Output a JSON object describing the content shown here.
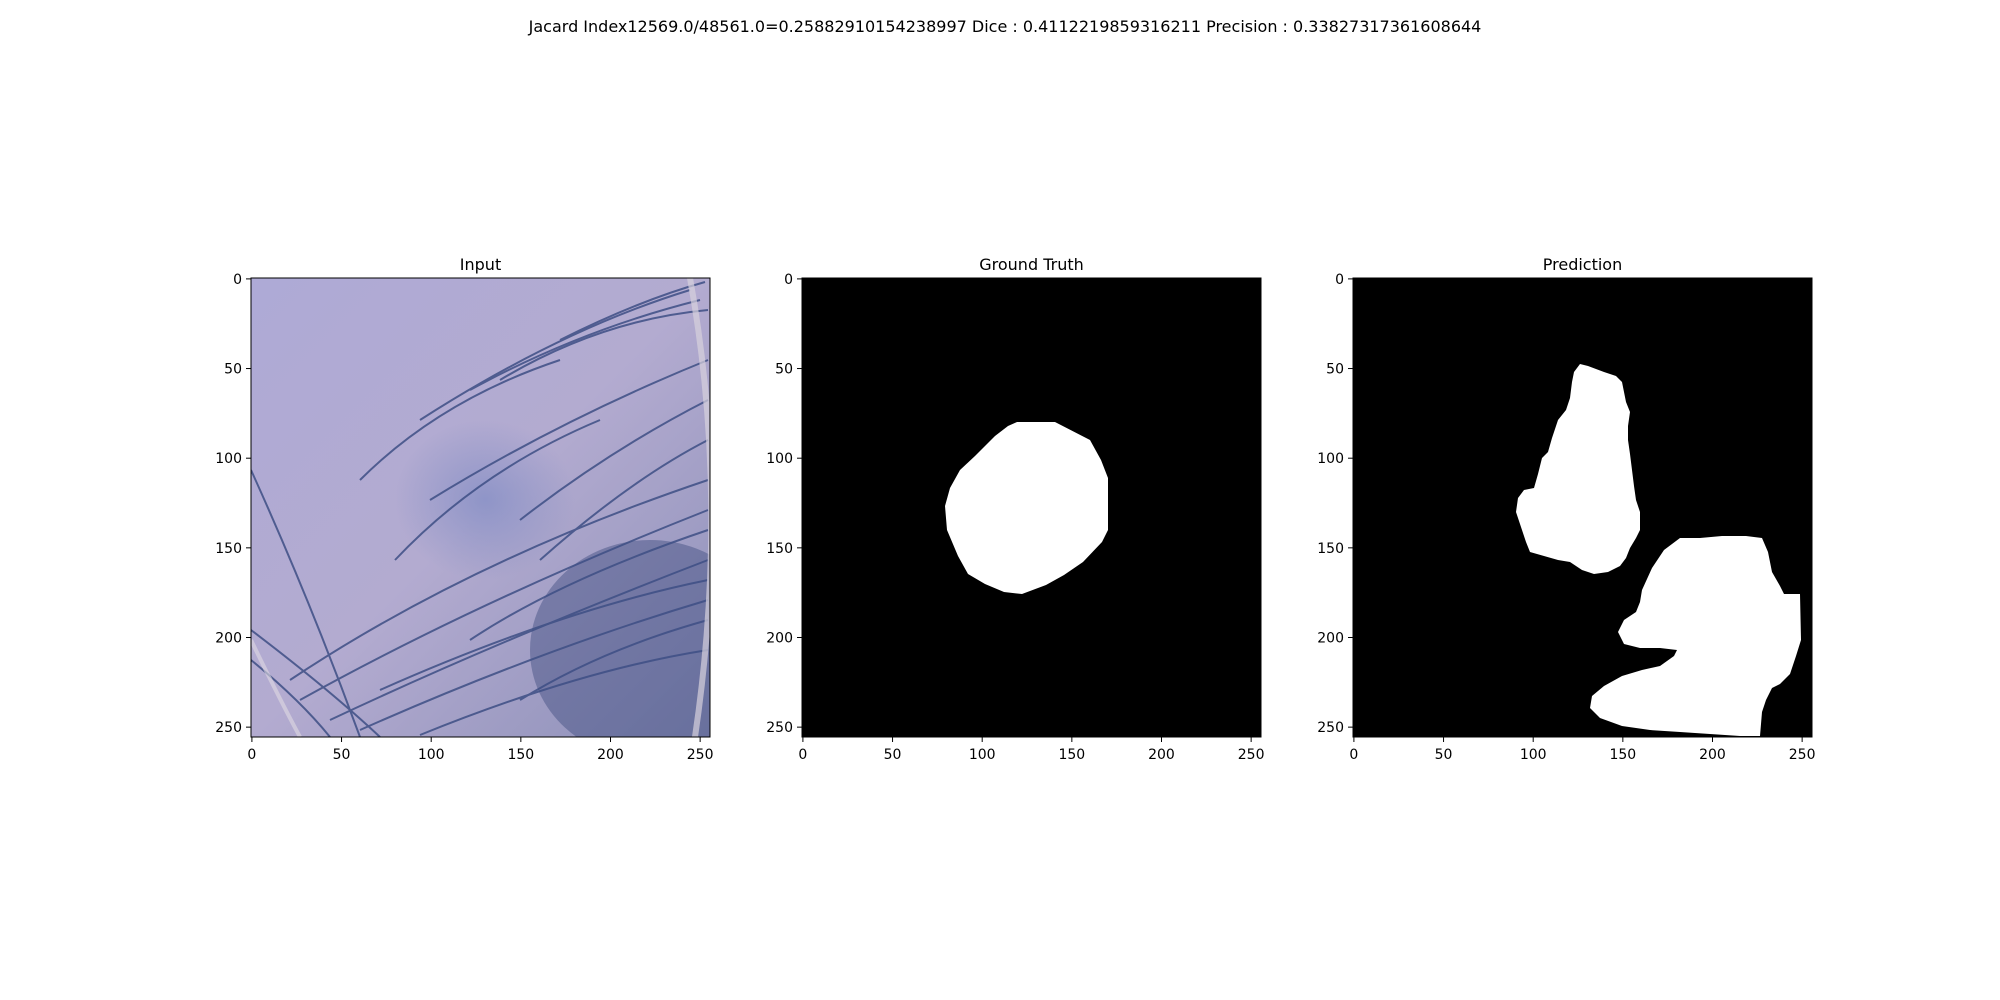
{
  "figure": {
    "suptitle": "Jacard Index12569.0/48561.0=0.25882910154238997 Dice : 0.4112219859316211 Precision : 0.33827317361608644"
  },
  "colors": {
    "mask_background": "#000000",
    "mask_foreground": "#ffffff",
    "input_base": "#a9a6cf",
    "hair_stroke": "#3e4f85"
  },
  "axes": {
    "x_ticks": [
      "0",
      "50",
      "100",
      "150",
      "200",
      "250"
    ],
    "y_ticks": [
      "0",
      "50",
      "100",
      "150",
      "200",
      "250"
    ]
  },
  "panels": [
    {
      "id": "input",
      "title": "Input"
    },
    {
      "id": "ground-truth",
      "title": "Ground Truth"
    },
    {
      "id": "prediction",
      "title": "Prediction"
    }
  ]
}
